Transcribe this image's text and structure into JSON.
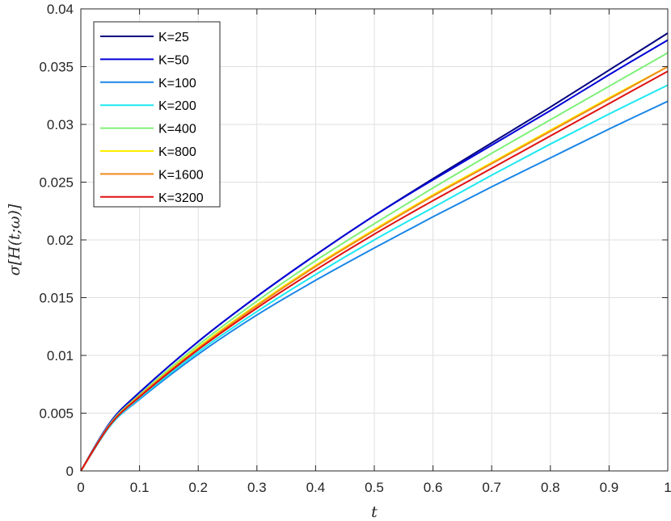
{
  "chart_data": {
    "type": "line",
    "xlabel": "t",
    "ylabel": "σ[H(t;ω)]",
    "xlim": [
      0,
      1
    ],
    "ylim": [
      0,
      0.04
    ],
    "xticks": [
      "0",
      "0.1",
      "0.2",
      "0.3",
      "0.4",
      "0.5",
      "0.6",
      "0.7",
      "0.8",
      "0.9",
      "1"
    ],
    "yticks": [
      "0",
      "0.005",
      "0.01",
      "0.015",
      "0.02",
      "0.025",
      "0.03",
      "0.035",
      "0.04"
    ],
    "grid": true,
    "legend_position": "top-left",
    "x": [
      0,
      0.05,
      0.1,
      0.2,
      0.3,
      0.4,
      0.5,
      0.6,
      0.7,
      0.8,
      0.9,
      1.0
    ],
    "series": [
      {
        "name": "K=25",
        "color": "#00007f",
        "values": [
          0,
          0.0042,
          0.0068,
          0.0112,
          0.0151,
          0.0187,
          0.0221,
          0.0253,
          0.0284,
          0.0315,
          0.0347,
          0.0379
        ]
      },
      {
        "name": "K=50",
        "color": "#0000d6",
        "values": [
          0,
          0.0042,
          0.0068,
          0.0112,
          0.0151,
          0.0187,
          0.0221,
          0.0252,
          0.0282,
          0.0312,
          0.0343,
          0.0373
        ]
      },
      {
        "name": "K=100",
        "color": "#1a86e8",
        "values": [
          0,
          0.0039,
          0.0062,
          0.0101,
          0.0135,
          0.0165,
          0.0193,
          0.022,
          0.0246,
          0.0271,
          0.0296,
          0.032
        ]
      },
      {
        "name": "K=200",
        "color": "#1ee8f0",
        "values": [
          0,
          0.0039,
          0.0063,
          0.0103,
          0.0138,
          0.017,
          0.02,
          0.0228,
          0.0256,
          0.0283,
          0.0309,
          0.0334
        ]
      },
      {
        "name": "K=400",
        "color": "#80f07a",
        "values": [
          0,
          0.0041,
          0.0066,
          0.0109,
          0.0147,
          0.0182,
          0.0214,
          0.0245,
          0.0275,
          0.0304,
          0.0333,
          0.0362
        ]
      },
      {
        "name": "K=800",
        "color": "#ffee00",
        "values": [
          0,
          0.004,
          0.0065,
          0.0107,
          0.0144,
          0.0178,
          0.0209,
          0.0239,
          0.0267,
          0.0295,
          0.0323,
          0.035
        ]
      },
      {
        "name": "K=1600",
        "color": "#f08a1a",
        "values": [
          0,
          0.004,
          0.0065,
          0.0106,
          0.0143,
          0.0177,
          0.0208,
          0.0238,
          0.0266,
          0.0294,
          0.0322,
          0.035
        ]
      },
      {
        "name": "K=3200",
        "color": "#e01010",
        "values": [
          0,
          0.004,
          0.0064,
          0.0105,
          0.0141,
          0.0174,
          0.0205,
          0.0234,
          0.0262,
          0.029,
          0.0318,
          0.0346
        ]
      }
    ]
  }
}
